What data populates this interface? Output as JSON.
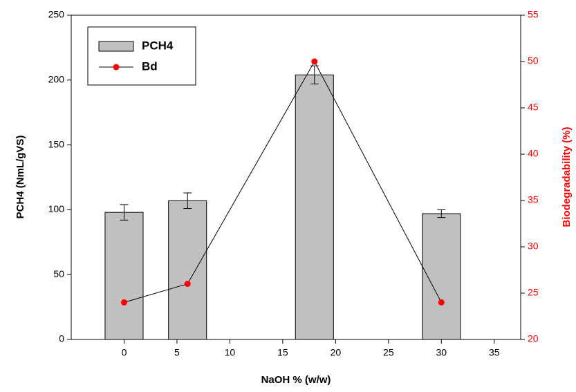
{
  "chart_data": {
    "type": "bar_line",
    "xlabel": "NaOH % (w/w)",
    "ylabel": "PCH4 (NmL/gVS)",
    "y2label": "Biodegradability (%)",
    "xlim": [
      -5,
      37.5
    ],
    "xticks": [
      0,
      5,
      10,
      15,
      20,
      25,
      30,
      35
    ],
    "ylim": [
      0,
      250
    ],
    "yticks": [
      0,
      50,
      100,
      150,
      200,
      250
    ],
    "y2lim": [
      20,
      55
    ],
    "y2ticks": [
      20,
      25,
      30,
      35,
      40,
      45,
      50,
      55
    ],
    "y2color": "#ff0000",
    "legend": "upper left",
    "series": [
      {
        "name": "PCH4",
        "kind": "bar",
        "color": "#c0c0c0",
        "x": [
          0,
          6,
          18,
          30
        ],
        "values": [
          98,
          107,
          204,
          97
        ],
        "errors": [
          6,
          6,
          7,
          3
        ]
      },
      {
        "name": "Bd",
        "kind": "line",
        "axis": "y2",
        "color": "#ff0000",
        "x": [
          0,
          6,
          18,
          30
        ],
        "values": [
          24,
          26,
          50,
          24
        ]
      }
    ]
  }
}
